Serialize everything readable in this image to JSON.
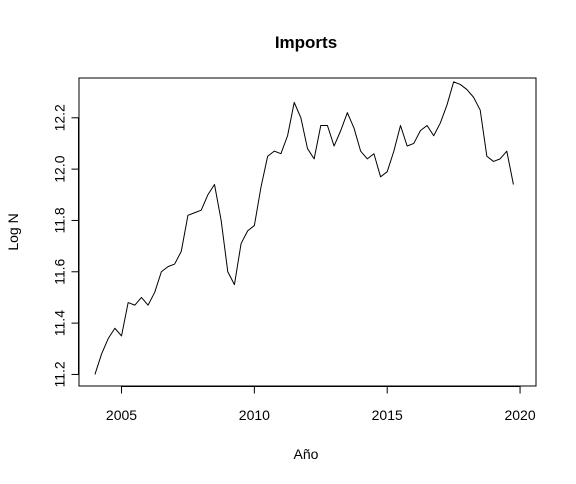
{
  "chart_data": {
    "type": "line",
    "title": "Imports",
    "xlabel": "Año",
    "ylabel": "Log N",
    "xlim": [
      2003.4,
      2020.6
    ],
    "ylim": [
      11.155,
      12.355
    ],
    "x_ticks": [
      2005,
      2010,
      2015,
      2020
    ],
    "y_ticks": [
      11.2,
      11.4,
      11.6,
      11.8,
      12.0,
      12.2
    ],
    "y_tick_labels": [
      "11.2",
      "11.4",
      "11.6",
      "11.8",
      "12.0",
      "12.2"
    ],
    "grid": false,
    "line_color": "#000000",
    "series": [
      {
        "x": [
          2004.0,
          2004.25,
          2004.5,
          2004.75,
          2005.0,
          2005.25,
          2005.5,
          2005.75,
          2006.0,
          2006.25,
          2006.5,
          2006.75,
          2007.0,
          2007.25,
          2007.5,
          2007.75,
          2008.0,
          2008.25,
          2008.5,
          2008.75,
          2009.0,
          2009.25,
          2009.5,
          2009.75,
          2010.0,
          2010.25,
          2010.5,
          2010.75,
          2011.0,
          2011.25,
          2011.5,
          2011.75,
          2012.0,
          2012.25,
          2012.5,
          2012.75,
          2013.0,
          2013.25,
          2013.5,
          2013.75,
          2014.0,
          2014.25,
          2014.5,
          2014.75,
          2015.0,
          2015.25,
          2015.5,
          2015.75,
          2016.0,
          2016.25,
          2016.5,
          2016.75,
          2017.0,
          2017.25,
          2017.5,
          2017.75,
          2018.0,
          2018.25,
          2018.5,
          2018.75,
          2019.0,
          2019.25,
          2019.5,
          2019.75
        ],
        "values": [
          11.2,
          11.28,
          11.34,
          11.38,
          11.35,
          11.48,
          11.47,
          11.5,
          11.47,
          11.52,
          11.6,
          11.62,
          11.63,
          11.68,
          11.82,
          11.83,
          11.84,
          11.9,
          11.94,
          11.8,
          11.6,
          11.55,
          11.71,
          11.76,
          11.78,
          11.93,
          12.05,
          12.07,
          12.06,
          12.13,
          12.26,
          12.2,
          12.08,
          12.04,
          12.17,
          12.17,
          12.09,
          12.15,
          12.22,
          12.16,
          12.07,
          12.04,
          12.06,
          11.97,
          11.99,
          12.07,
          12.17,
          12.09,
          12.1,
          12.15,
          12.17,
          12.13,
          12.18,
          12.25,
          12.34,
          12.33,
          12.31,
          12.28,
          12.23,
          12.05,
          12.03,
          12.04,
          12.07,
          11.94
        ]
      }
    ]
  }
}
